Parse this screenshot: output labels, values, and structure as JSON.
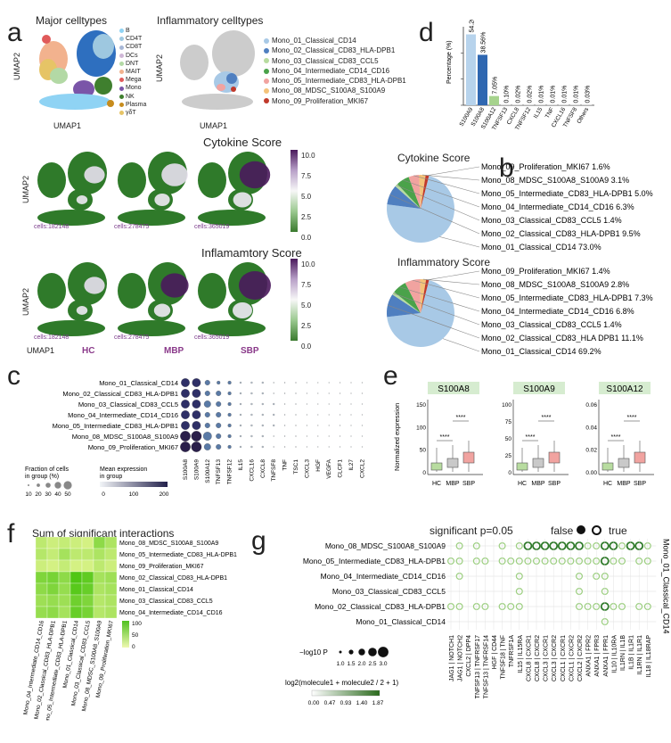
{
  "panels": {
    "a": "a",
    "b": "b",
    "c": "c",
    "d": "d",
    "e": "e",
    "f": "f",
    "g": "g"
  },
  "a": {
    "major_title": "Major celltypes",
    "inflam_title": "Inflammatory celltypes",
    "umap1": "UMAP1",
    "umap2": "UMAP2",
    "major_legend": [
      {
        "label": "B",
        "color": "#8fd3f4"
      },
      {
        "label": "CD4T",
        "color": "#9ec8e0"
      },
      {
        "label": "CD8T",
        "color": "#a7b7d6"
      },
      {
        "label": "DCs",
        "color": "#cfb7d6"
      },
      {
        "label": "DNT",
        "color": "#b3d9a5"
      },
      {
        "label": "MAIT",
        "color": "#f2b28e"
      },
      {
        "label": "Mega",
        "color": "#e05a5a"
      },
      {
        "label": "Mono",
        "color": "#7a55a8"
      },
      {
        "label": "NK",
        "color": "#3f7f2e"
      },
      {
        "label": "Plasma",
        "color": "#c78c1d"
      },
      {
        "label": "γδT",
        "color": "#e6c466"
      }
    ],
    "inflam_legend": [
      {
        "label": "Mono_01_Classical_CD14",
        "color": "#a8c9e6"
      },
      {
        "label": "Mono_02_Classical_CD83_HLA-DPB1",
        "color": "#4f7fc0"
      },
      {
        "label": "Mono_03_Classical_CD83_CCL5",
        "color": "#b8dca0"
      },
      {
        "label": "Mono_04_Intermediate_CD14_CD16",
        "color": "#4aa24a"
      },
      {
        "label": "Mono_05_Intermediate_CD83_HLA-DPB1",
        "color": "#f1a3a0"
      },
      {
        "label": "Mono_08_MDSC_S100A8_S100A9",
        "color": "#f4c37a"
      },
      {
        "label": "Mono_09_Proliferation_MKI67",
        "color": "#c0392b"
      }
    ],
    "cytokine_title": "Cytokine Score",
    "inflam_score_title": "Inflamamtory Score",
    "colorbar_ticks": [
      "10.0",
      "7.5",
      "5.0",
      "2.5",
      "0.0"
    ],
    "cells": [
      "cells:182148",
      "cells:278475",
      "cells:365019"
    ],
    "groups": [
      "HC",
      "MBP",
      "SBP"
    ]
  },
  "d": {
    "ylabel": "Percentage (%)",
    "bars": [
      {
        "gene": "S100A9",
        "value": 54.2,
        "label": "54.20%",
        "color": "#b7d3ec"
      },
      {
        "gene": "S100A8",
        "value": 38.56,
        "label": "38.56%",
        "color": "#2f67b1"
      },
      {
        "gene": "S100A12",
        "value": 7.05,
        "label": "7.05%",
        "color": "#a6d38d"
      },
      {
        "gene": "TNFSF13",
        "value": 0.1,
        "label": "0.10%",
        "color": "#bbbbbb"
      },
      {
        "gene": "CXCL8",
        "value": 0.02,
        "label": "0.02%",
        "color": "#bbbbbb"
      },
      {
        "gene": "TNFSF12",
        "value": 0.02,
        "label": "0.02%",
        "color": "#bbbbbb"
      },
      {
        "gene": "IL15",
        "value": 0.01,
        "label": "0.01%",
        "color": "#bbbbbb"
      },
      {
        "gene": "TNF",
        "value": 0.01,
        "label": "0.01%",
        "color": "#bbbbbb"
      },
      {
        "gene": "CXCL16",
        "value": 0.01,
        "label": "0.01%",
        "color": "#bbbbbb"
      },
      {
        "gene": "TNFSF8",
        "value": 0.01,
        "label": "0.01%",
        "color": "#bbbbbb"
      },
      {
        "gene": "Others",
        "value": 0.03,
        "label": "0.03%",
        "color": "#bbbbbb"
      }
    ]
  },
  "b": {
    "cytokine_title": "Cytokine Score",
    "cytokine_slices": [
      {
        "label": "Mono_09_Proliferation_MKI67 1.6%",
        "value": 1.6,
        "color": "#c0392b"
      },
      {
        "label": "Mono_08_MDSC_S100A8_S100A9 3.1%",
        "value": 3.1,
        "color": "#f4c37a"
      },
      {
        "label": "Mono_05_Intermediate_CD83_HLA-DPB1 5.0%",
        "value": 5.0,
        "color": "#f1a3a0"
      },
      {
        "label": "Mono_04_Intermediate_CD14_CD16 6.3%",
        "value": 6.3,
        "color": "#4aa24a"
      },
      {
        "label": "Mono_03_Classical_CD83_CCL5 1.4%",
        "value": 1.4,
        "color": "#b8dca0"
      },
      {
        "label": "Mono_02_Classical_CD83_HLA-DPB1 9.5%",
        "value": 9.5,
        "color": "#4f7fc0"
      },
      {
        "label": "Mono_01_Classical_CD14 73.0%",
        "value": 73.0,
        "color": "#a8c9e6"
      }
    ],
    "inflam_title": "Inflammatory Score",
    "inflam_slices": [
      {
        "label": "Mono_09_Proliferation_MKI67 1.4%",
        "value": 1.4,
        "color": "#c0392b"
      },
      {
        "label": "Mono_08_MDSC_S100A8_S100A9 2.8%",
        "value": 2.8,
        "color": "#f4c37a"
      },
      {
        "label": "Mono_05_Intermediate_CD83_HLA-DPB1 7.3%",
        "value": 7.3,
        "color": "#f1a3a0"
      },
      {
        "label": "Mono_04_Intermediate_CD14_CD16 6.8%",
        "value": 6.8,
        "color": "#4aa24a"
      },
      {
        "label": "Mono_03_Classical_CD83_CCL5 1.4%",
        "value": 1.4,
        "color": "#b8dca0"
      },
      {
        "label": "Mono_02_Classical_CD83_HLA DPB1 11.1%",
        "value": 11.1,
        "color": "#4f7fc0"
      },
      {
        "label": "Mono_01_Classical_CD14 69.2%",
        "value": 69.2,
        "color": "#a8c9e6"
      }
    ]
  },
  "c": {
    "rows": [
      "Mono_01_Classical_CD14",
      "Mono_02_Classical_CD83_HLA-DPB1",
      "Mono_03_Classical_CD83_CCL5",
      "Mono_04_Intermediate_CD14_CD16",
      "Mono_05_Intermediate_CD83_HLA-DPB1",
      "Mono_08_MDSC_S100A8_S100A9",
      "Mono_09_Proliferation_MKI67"
    ],
    "cols": [
      "S100A8",
      "S100A9",
      "S100A12",
      "TNFSF13",
      "TNFSF12",
      "IL15",
      "CXCL16",
      "CXCL8",
      "TNFSF8",
      "TNF",
      "TSC1",
      "CXCL3",
      "HGF",
      "VEGFA",
      "CLCF1",
      "IL27",
      "CXCL2",
      "PF4",
      "PDGFA",
      "IL10",
      "CXCL1"
    ],
    "size_legend_title": "Fraction of cells in group (%)",
    "size_legend_ticks": [
      "10",
      "20",
      "30",
      "40",
      "50"
    ],
    "color_legend_title": "Mean expression in group",
    "color_legend_ticks": [
      "0",
      "100",
      "200"
    ]
  },
  "e": {
    "ylabel": "Normalized expression",
    "panels": [
      {
        "gene": "S100A8",
        "ticks": [
          "150",
          "100",
          "50",
          "0"
        ],
        "sig": [
          "****",
          "****"
        ]
      },
      {
        "gene": "S100A9",
        "ticks": [
          "100",
          "75",
          "50",
          "25",
          "0"
        ],
        "sig": [
          "****",
          "****"
        ]
      },
      {
        "gene": "S100A12",
        "ticks": [
          "0.06",
          "0.04",
          "0.02",
          "0.00"
        ],
        "sig": [
          "****",
          "****"
        ]
      }
    ],
    "groups": [
      "HC",
      "MBP",
      "SBP"
    ]
  },
  "f": {
    "title": "Sum of significant interactions",
    "rows": [
      "Mono_08_MDSC_S100A8_S100A9",
      "Mono_05_Intermediate_CD83_HLA-DPB1",
      "Mono_09_Proliferation_MKI67",
      "Mono_02_Classical_CD83_HLA-DPB1",
      "Mono_01_Classical_CD14",
      "Mono_03_Classical_CD83_CCL5",
      "Mono_04_Intermediate_CD14_CD16"
    ],
    "cols": [
      "Mono_04_Intermediate_CD14_CD16",
      "Mono_02_Classical_CD83_HLA-DPB1",
      "Mono_05_Intermediate_CD83_HLA-DPB1",
      "Mono_01_Classical_CD14",
      "Mono_03_Classical_CD83_CCL5",
      "Mono_08_MDSC_S100A8_S100A9",
      "Mono_09_Proliferation_MKI67"
    ],
    "legend_ticks": [
      "100",
      "50",
      "0"
    ]
  },
  "g": {
    "sig_title": "significant p=0.05",
    "false_label": "false",
    "true_label": "true",
    "target": "Mono_01_Classical_CD14",
    "rows": [
      "Mono_08_MDSC_S100A8_S100A9",
      "Mono_05_Intermediate_CD83_HLA-DPB1",
      "Mono_04_Intermediate_CD14_CD16",
      "Mono_03_Classical_CD83_CCL5",
      "Mono_02_Classical_CD83_HLA-DPB1",
      "Mono_01_Classical_CD14"
    ],
    "cols": [
      "JAG1 | NOTCH1",
      "JAG1 | NOTCH2",
      "CXCL2 | DPP4",
      "TNFSF13 | TNFRSF17",
      "TNFSF13 | TNFRSF14",
      "HGF | CD44",
      "TNFSF18 | TNF",
      "TNFRSF1A",
      "IL15 | IL15RA",
      "CXCL8 | CXCR1",
      "CXCL8 | CXCR2",
      "CXCL3 | CXCR1",
      "CXCL3 | CXCR2",
      "CXCL1 | CXCR1",
      "CXCL1 | CXCR2",
      "CXCL2 | CXCR2",
      "ANXA1 | FPR2",
      "ANXA1 | FPR3",
      "ANXA1 | FPR1",
      "IL10 | IL10RA",
      "IL1RN | IL1B",
      "IL1B | IL1R1",
      "IL1RN | IL1R1",
      "IL18 | IL18RAP"
    ],
    "p_legend_label": "−log10 P",
    "p_ticks": [
      "1.0",
      "1.5",
      "2.0",
      "2.5",
      "3.0"
    ],
    "expr_legend_label": "log2(molecule1 + molecule2 / 2 + 1)",
    "expr_ticks": [
      "0.00",
      "0.47",
      "0.93",
      "1.40",
      "1.87"
    ]
  }
}
